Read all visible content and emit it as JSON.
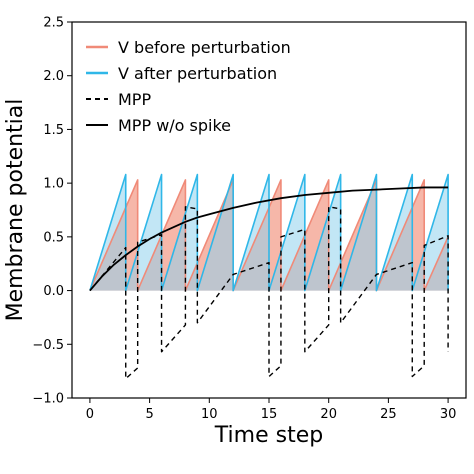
{
  "chart_data": {
    "type": "line",
    "xlabel": "Time step",
    "ylabel": "Membrane potential",
    "xlim": [
      -1.5,
      31.5
    ],
    "ylim": [
      -1.0,
      2.5
    ],
    "xticks": [
      0,
      5,
      10,
      15,
      20,
      25,
      30
    ],
    "xtick_labels": [
      "0",
      "5",
      "10",
      "15",
      "20",
      "25",
      "30"
    ],
    "yticks": [
      -1.0,
      -0.5,
      0.0,
      0.5,
      1.0,
      1.5,
      2.0,
      2.5
    ],
    "ytick_labels": [
      "−1.0",
      "−0.5",
      "0.0",
      "0.5",
      "1.0",
      "1.5",
      "2.0",
      "2.5"
    ],
    "grid": false,
    "legend_position": "upper-left",
    "colors": {
      "before": "#f08a78",
      "before_fill": "#f4a594",
      "after": "#2fb7e8",
      "after_fill": "#8fd2ec",
      "mpp": "#000000"
    },
    "series": [
      {
        "name": "V before perturbation",
        "style": "sawtooth-filled",
        "points": [
          [
            0,
            0
          ],
          [
            4,
            1.03
          ],
          [
            4,
            0
          ],
          [
            8,
            1.03
          ],
          [
            8,
            0
          ],
          [
            12,
            1.03
          ],
          [
            12,
            0
          ],
          [
            16,
            1.03
          ],
          [
            16,
            0
          ],
          [
            20,
            1.03
          ],
          [
            20,
            0
          ],
          [
            24,
            1.03
          ],
          [
            24,
            0
          ],
          [
            28,
            1.03
          ],
          [
            28,
            0
          ],
          [
            30,
            0.5
          ]
        ]
      },
      {
        "name": "V after perturbation",
        "style": "sawtooth-filled",
        "points": [
          [
            0,
            0
          ],
          [
            3,
            1.08
          ],
          [
            3,
            0
          ],
          [
            6,
            1.08
          ],
          [
            6,
            0
          ],
          [
            9,
            1.08
          ],
          [
            9,
            0
          ],
          [
            12,
            1.08
          ],
          [
            12,
            0
          ],
          [
            15,
            1.08
          ],
          [
            15,
            0
          ],
          [
            18,
            1.08
          ],
          [
            18,
            0
          ],
          [
            21,
            1.08
          ],
          [
            21,
            0
          ],
          [
            24,
            1.08
          ],
          [
            24,
            0
          ],
          [
            27,
            1.08
          ],
          [
            27,
            0
          ],
          [
            30,
            1.08
          ],
          [
            30,
            0
          ]
        ]
      },
      {
        "name": "MPP",
        "style": "dashed",
        "points": [
          [
            0,
            0
          ],
          [
            3,
            0.4
          ],
          [
            3,
            -0.82
          ],
          [
            4,
            -0.72
          ],
          [
            4,
            0.45
          ],
          [
            6,
            0.52
          ],
          [
            6,
            -0.57
          ],
          [
            8,
            -0.32
          ],
          [
            8,
            0.78
          ],
          [
            9,
            0.76
          ],
          [
            9,
            -0.3
          ],
          [
            12,
            0.15
          ],
          [
            15,
            0.26
          ],
          [
            15,
            -0.8
          ],
          [
            16,
            -0.7
          ],
          [
            16,
            0.5
          ],
          [
            18,
            0.57
          ],
          [
            18,
            -0.57
          ],
          [
            20,
            -0.32
          ],
          [
            20,
            0.78
          ],
          [
            21,
            0.76
          ],
          [
            21,
            -0.3
          ],
          [
            24,
            0.15
          ],
          [
            27,
            0.26
          ],
          [
            27,
            -0.8
          ],
          [
            28,
            -0.7
          ],
          [
            28,
            0.42
          ],
          [
            30,
            0.51
          ],
          [
            30,
            -0.57
          ]
        ]
      },
      {
        "name": "MPP w/o spike",
        "style": "solid",
        "points": [
          [
            0,
            0
          ],
          [
            1,
            0.13
          ],
          [
            2,
            0.24
          ],
          [
            3,
            0.33
          ],
          [
            4,
            0.41
          ],
          [
            5,
            0.48
          ],
          [
            6,
            0.54
          ],
          [
            7,
            0.59
          ],
          [
            8,
            0.64
          ],
          [
            9,
            0.68
          ],
          [
            10,
            0.71
          ],
          [
            12,
            0.77
          ],
          [
            14,
            0.82
          ],
          [
            16,
            0.86
          ],
          [
            18,
            0.89
          ],
          [
            20,
            0.91
          ],
          [
            22,
            0.93
          ],
          [
            24,
            0.94
          ],
          [
            26,
            0.95
          ],
          [
            28,
            0.96
          ],
          [
            30,
            0.96
          ]
        ]
      }
    ]
  }
}
